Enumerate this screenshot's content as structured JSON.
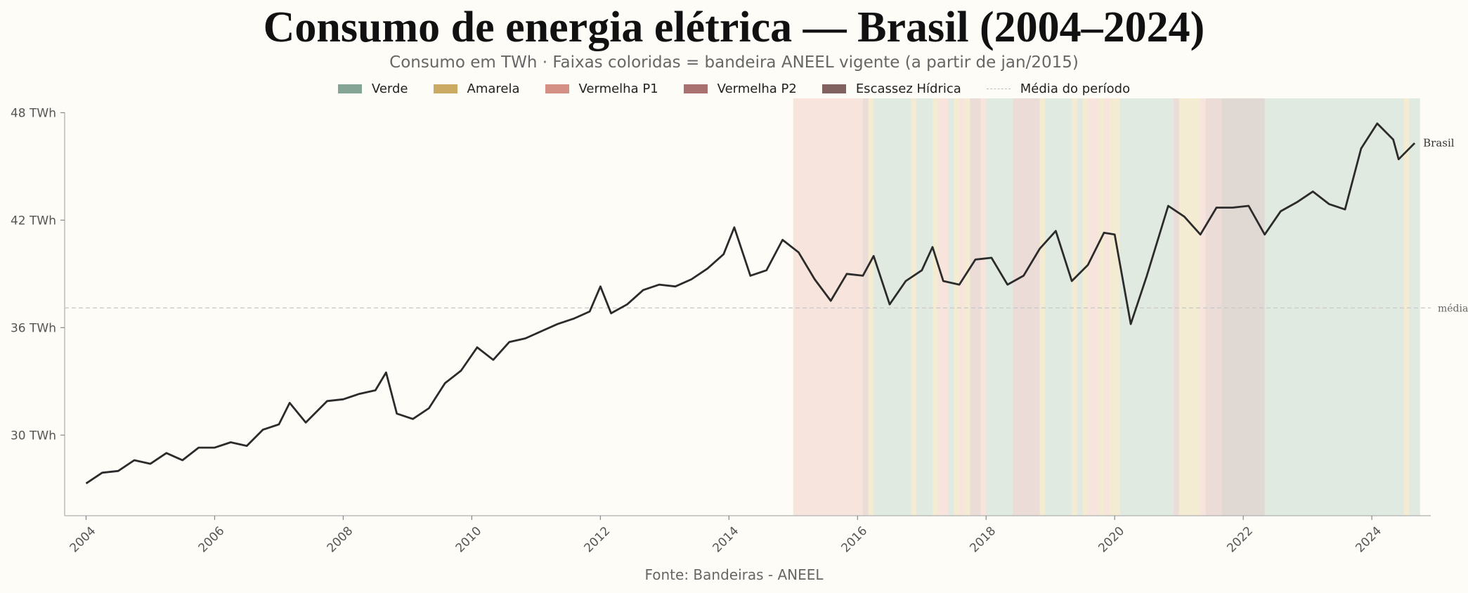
{
  "chart_data": {
    "type": "line",
    "title": "Consumo de energia elétrica — Brasil (2004–2024)",
    "subtitle": "Consumo em TWh · Faixas coloridas = bandeira ANEEL vigente (a partir de jan/2015)",
    "source": "Fonte: Bandeiras - ANEEL",
    "x_start": "2004-01",
    "x_end": "2024-09",
    "xlim": [
      "2003-09",
      "2024-12"
    ],
    "ylim": [
      25.5,
      48.8
    ],
    "x_ticks": [
      "2004",
      "2006",
      "2008",
      "2010",
      "2012",
      "2014",
      "2016",
      "2018",
      "2020",
      "2022",
      "2024"
    ],
    "y_ticks": [
      30,
      36,
      42,
      48
    ],
    "y_tick_labels": [
      "30 TWh",
      "36 TWh",
      "42 TWh",
      "48 TWh"
    ],
    "mean": 37.1,
    "mean_label": "média",
    "end_label": "Brasil",
    "series": [
      {
        "color": "#2b2b2b",
        "points": [
          [
            "2004-01",
            27.3
          ],
          [
            "2004-04",
            27.9
          ],
          [
            "2004-07",
            28.0
          ],
          [
            "2004-10",
            28.6
          ],
          [
            "2005-01",
            28.4
          ],
          [
            "2005-04",
            29.0
          ],
          [
            "2005-07",
            28.6
          ],
          [
            "2005-10",
            29.3
          ],
          [
            "2006-01",
            29.3
          ],
          [
            "2006-04",
            29.6
          ],
          [
            "2006-07",
            29.4
          ],
          [
            "2006-10",
            30.3
          ],
          [
            "2007-01",
            30.6
          ],
          [
            "2007-03",
            31.8
          ],
          [
            "2007-06",
            30.7
          ],
          [
            "2007-10",
            31.9
          ],
          [
            "2008-01",
            32.0
          ],
          [
            "2008-04",
            32.3
          ],
          [
            "2008-07",
            32.5
          ],
          [
            "2008-09",
            33.5
          ],
          [
            "2008-11",
            31.2
          ],
          [
            "2009-02",
            30.9
          ],
          [
            "2009-05",
            31.5
          ],
          [
            "2009-08",
            32.9
          ],
          [
            "2009-11",
            33.6
          ],
          [
            "2010-02",
            34.9
          ],
          [
            "2010-05",
            34.2
          ],
          [
            "2010-08",
            35.2
          ],
          [
            "2010-11",
            35.4
          ],
          [
            "2011-02",
            35.8
          ],
          [
            "2011-05",
            36.2
          ],
          [
            "2011-08",
            36.5
          ],
          [
            "2011-11",
            36.9
          ],
          [
            "2012-01",
            38.3
          ],
          [
            "2012-03",
            36.8
          ],
          [
            "2012-06",
            37.3
          ],
          [
            "2012-09",
            38.1
          ],
          [
            "2012-12",
            38.4
          ],
          [
            "2013-03",
            38.3
          ],
          [
            "2013-06",
            38.7
          ],
          [
            "2013-09",
            39.3
          ],
          [
            "2013-12",
            40.1
          ],
          [
            "2014-02",
            41.6
          ],
          [
            "2014-05",
            38.9
          ],
          [
            "2014-08",
            39.2
          ],
          [
            "2014-11",
            40.9
          ],
          [
            "2015-02",
            40.2
          ],
          [
            "2015-05",
            38.7
          ],
          [
            "2015-08",
            37.5
          ],
          [
            "2015-11",
            39.0
          ],
          [
            "2016-02",
            38.9
          ],
          [
            "2016-04",
            40.0
          ],
          [
            "2016-07",
            37.3
          ],
          [
            "2016-10",
            38.6
          ],
          [
            "2017-01",
            39.2
          ],
          [
            "2017-03",
            40.5
          ],
          [
            "2017-05",
            38.6
          ],
          [
            "2017-08",
            38.4
          ],
          [
            "2017-11",
            39.8
          ],
          [
            "2018-02",
            39.9
          ],
          [
            "2018-05",
            38.4
          ],
          [
            "2018-08",
            38.9
          ],
          [
            "2018-11",
            40.4
          ],
          [
            "2019-02",
            41.4
          ],
          [
            "2019-05",
            38.6
          ],
          [
            "2019-08",
            39.5
          ],
          [
            "2019-11",
            41.3
          ],
          [
            "2020-01",
            41.2
          ],
          [
            "2020-04",
            36.2
          ],
          [
            "2020-07",
            38.9
          ],
          [
            "2020-11",
            42.8
          ],
          [
            "2021-02",
            42.2
          ],
          [
            "2021-05",
            41.2
          ],
          [
            "2021-08",
            42.7
          ],
          [
            "2021-11",
            42.7
          ],
          [
            "2022-02",
            42.8
          ],
          [
            "2022-05",
            41.2
          ],
          [
            "2022-08",
            42.5
          ],
          [
            "2022-11",
            43.0
          ],
          [
            "2023-02",
            43.6
          ],
          [
            "2023-05",
            42.9
          ],
          [
            "2023-08",
            42.6
          ],
          [
            "2023-11",
            46.0
          ],
          [
            "2024-02",
            47.4
          ],
          [
            "2024-05",
            46.5
          ],
          [
            "2024-06",
            45.4
          ],
          [
            "2024-09",
            46.3
          ]
        ]
      }
    ],
    "flag_bands_start": "2015-01",
    "flag_legend": [
      {
        "key": "verde",
        "label": "Verde",
        "color": "#8fb3a2"
      },
      {
        "key": "amarela",
        "label": "Amarela",
        "color": "#ddb96c"
      },
      {
        "key": "vermelha1",
        "label": "Vermelha P1",
        "color": "#e79c92"
      },
      {
        "key": "vermelha2",
        "label": "Vermelha P2",
        "color": "#b97b7b"
      },
      {
        "key": "escassez",
        "label": "Escassez Hídrica",
        "color": "#8d6a68"
      }
    ],
    "mean_legend_label": "Média do período",
    "flag_periods": [
      {
        "start": "2015-01",
        "end": "2016-01",
        "flag": "vermelha1"
      },
      {
        "start": "2016-02",
        "end": "2016-02",
        "flag": "vermelha2"
      },
      {
        "start": "2016-03",
        "end": "2016-03",
        "flag": "amarela"
      },
      {
        "start": "2016-04",
        "end": "2016-10",
        "flag": "verde"
      },
      {
        "start": "2016-11",
        "end": "2016-11",
        "flag": "amarela"
      },
      {
        "start": "2016-12",
        "end": "2017-02",
        "flag": "verde"
      },
      {
        "start": "2017-03",
        "end": "2017-03",
        "flag": "amarela"
      },
      {
        "start": "2017-04",
        "end": "2017-05",
        "flag": "vermelha1"
      },
      {
        "start": "2017-06",
        "end": "2017-06",
        "flag": "verde"
      },
      {
        "start": "2017-07",
        "end": "2017-07",
        "flag": "amarela"
      },
      {
        "start": "2017-08",
        "end": "2017-08",
        "flag": "vermelha1"
      },
      {
        "start": "2017-09",
        "end": "2017-09",
        "flag": "amarela"
      },
      {
        "start": "2017-10",
        "end": "2017-11",
        "flag": "vermelha2"
      },
      {
        "start": "2017-12",
        "end": "2017-12",
        "flag": "vermelha1"
      },
      {
        "start": "2018-01",
        "end": "2018-05",
        "flag": "verde"
      },
      {
        "start": "2018-06",
        "end": "2018-10",
        "flag": "vermelha2"
      },
      {
        "start": "2018-11",
        "end": "2018-11",
        "flag": "amarela"
      },
      {
        "start": "2018-12",
        "end": "2019-04",
        "flag": "verde"
      },
      {
        "start": "2019-05",
        "end": "2019-05",
        "flag": "amarela"
      },
      {
        "start": "2019-06",
        "end": "2019-06",
        "flag": "verde"
      },
      {
        "start": "2019-07",
        "end": "2019-07",
        "flag": "amarela"
      },
      {
        "start": "2019-08",
        "end": "2019-09",
        "flag": "vermelha1"
      },
      {
        "start": "2019-10",
        "end": "2019-10",
        "flag": "amarela"
      },
      {
        "start": "2019-11",
        "end": "2019-11",
        "flag": "vermelha1"
      },
      {
        "start": "2019-12",
        "end": "2020-01",
        "flag": "amarela"
      },
      {
        "start": "2020-02",
        "end": "2020-11",
        "flag": "verde"
      },
      {
        "start": "2020-12",
        "end": "2020-12",
        "flag": "vermelha2"
      },
      {
        "start": "2021-01",
        "end": "2021-04",
        "flag": "amarela"
      },
      {
        "start": "2021-05",
        "end": "2021-05",
        "flag": "vermelha1"
      },
      {
        "start": "2021-06",
        "end": "2021-08",
        "flag": "vermelha2"
      },
      {
        "start": "2021-09",
        "end": "2022-04",
        "flag": "escassez"
      },
      {
        "start": "2022-05",
        "end": "2024-06",
        "flag": "verde"
      },
      {
        "start": "2024-07",
        "end": "2024-07",
        "flag": "amarela"
      },
      {
        "start": "2024-08",
        "end": "2024-09",
        "flag": "verde"
      }
    ],
    "grid": false,
    "legend_position": "top-center"
  }
}
